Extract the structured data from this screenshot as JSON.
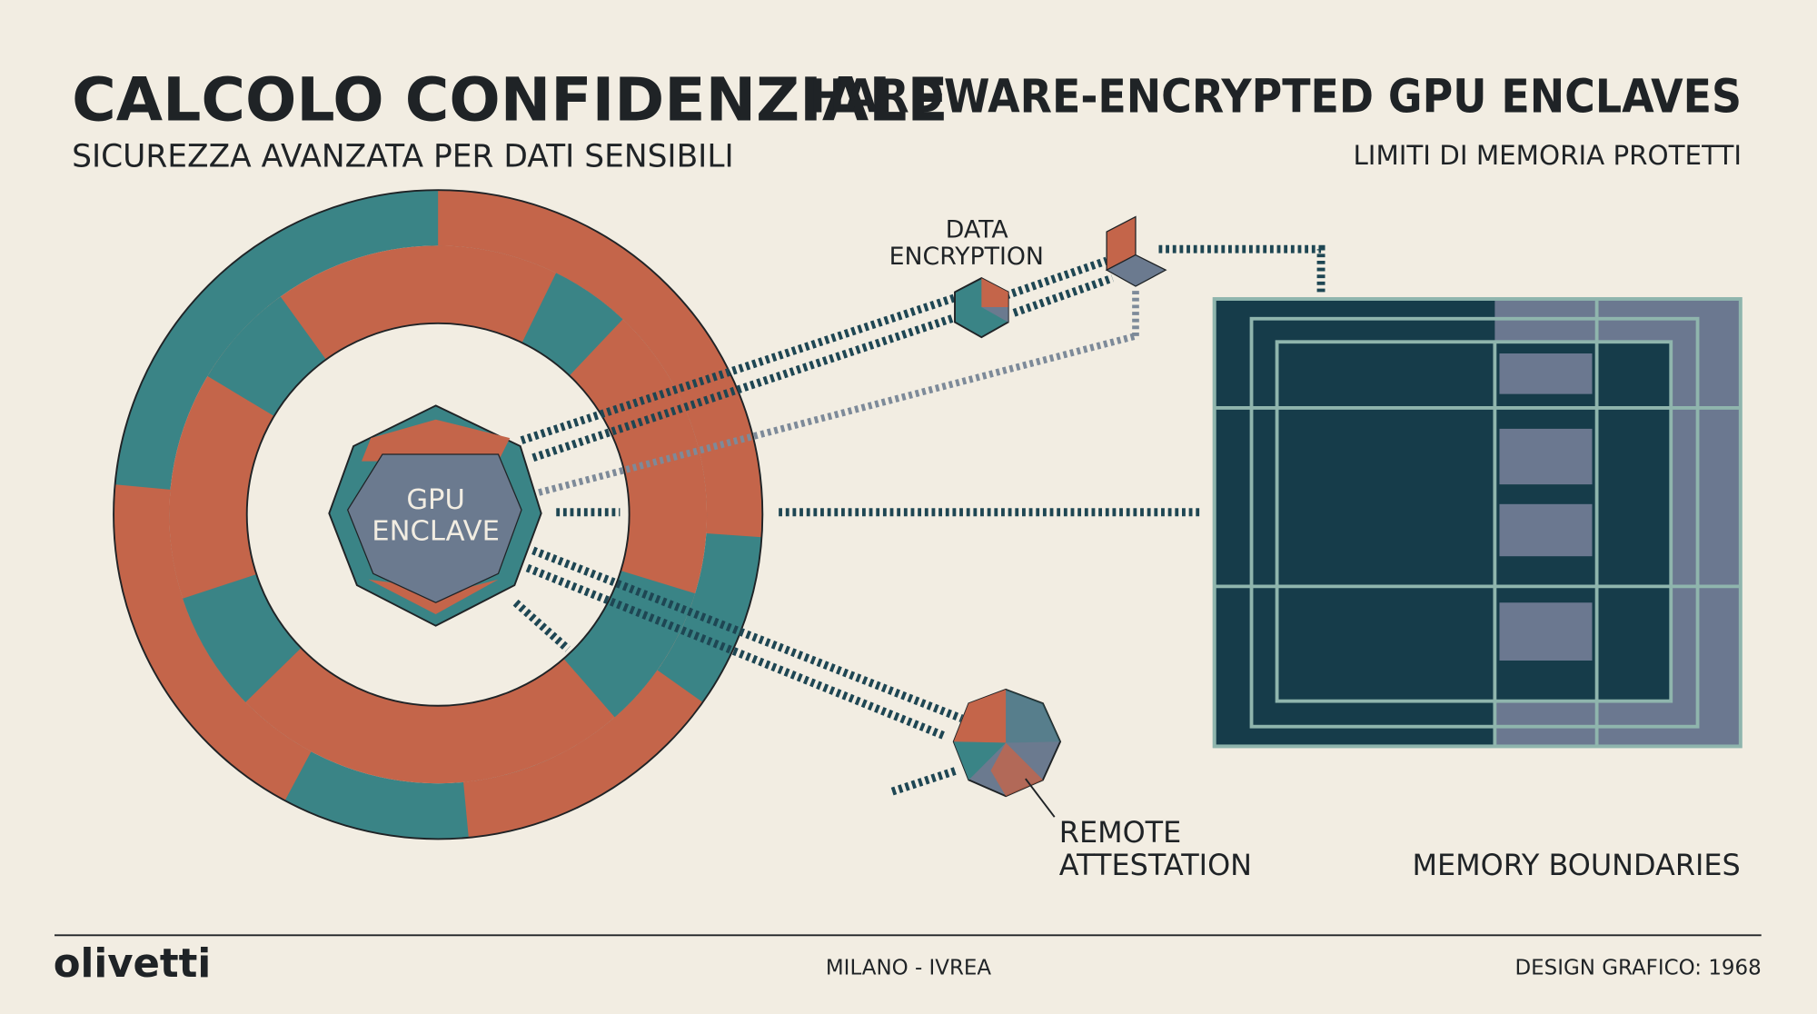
{
  "header": {
    "title": "CALCOLO CONFIDENZIALE",
    "subtitle": "SICUREZZA AVANZATA PER DATI SENSIBILI",
    "right_title": "HARDWARE-ENCRYPTED GPU ENCLAVES",
    "right_subtitle": "LIMITI DI MEMORIA PROTETTI"
  },
  "nodes": [
    {
      "lines": [
        "GPU",
        "ENCLAVE"
      ]
    },
    {
      "lines": [
        "DATA",
        "ENCRYPTION"
      ]
    },
    {
      "lines": [
        "REMOTE",
        "ATTESTATION"
      ]
    },
    {
      "lines": [
        "MEMORY BOUNDARIES"
      ]
    }
  ],
  "footer": {
    "brand": "olivetti",
    "location": "MILANO - IVREA",
    "credit": "DESIGN GRAFICO: 1968"
  }
}
